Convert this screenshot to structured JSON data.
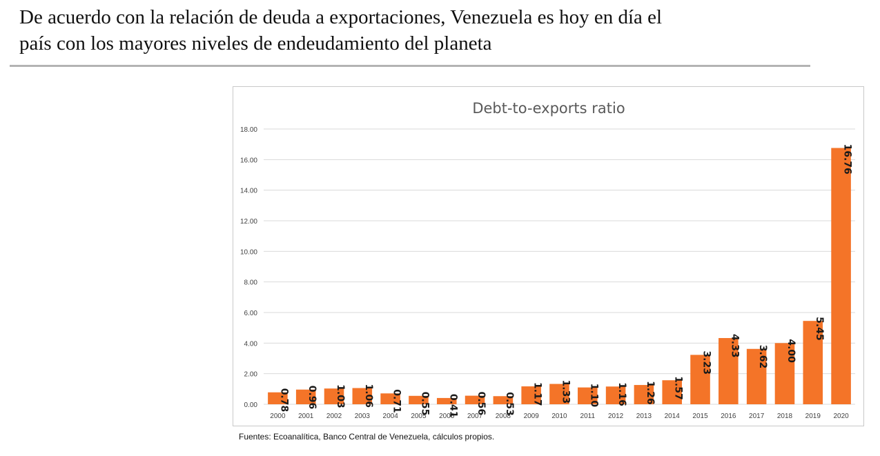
{
  "slide": {
    "title_line1": "De acuerdo con la relación de deuda a exportaciones, Venezuela es hoy en día el",
    "title_line2": "país con los mayores niveles de endeudamiento del planeta",
    "source": "Fuentes: Ecoanalítica, Banco Central de Venezuela, cálculos propios."
  },
  "chart_data": {
    "type": "bar",
    "title": "Debt-to-exports ratio",
    "xlabel": "",
    "ylabel": "",
    "categories": [
      "2000",
      "2001",
      "2002",
      "2003",
      "2004",
      "2005",
      "2006",
      "2007",
      "2008",
      "2009",
      "2010",
      "2011",
      "2012",
      "2013",
      "2014",
      "2015",
      "2016",
      "2017",
      "2018",
      "2019",
      "2020"
    ],
    "values": [
      0.78,
      0.96,
      1.03,
      1.06,
      0.71,
      0.55,
      0.41,
      0.56,
      0.53,
      1.17,
      1.33,
      1.1,
      1.16,
      1.26,
      1.57,
      3.23,
      4.33,
      3.62,
      4.0,
      5.45,
      16.76
    ],
    "value_labels": [
      "0.78",
      "0.96",
      "1.03",
      "1.06",
      "0.71",
      "0.55",
      "0.41",
      "0.56",
      "0.53",
      "1.17",
      "1.33",
      "1.10",
      "1.16",
      "1.26",
      "1.57",
      "3.23",
      "4.33",
      "3.62",
      "4.00",
      "5.45",
      "16.76"
    ],
    "ylim": [
      0,
      18
    ],
    "y_ticks": [
      "0.00",
      "2.00",
      "4.00",
      "6.00",
      "8.00",
      "10.00",
      "12.00",
      "14.00",
      "16.00",
      "18.00"
    ],
    "grid": true,
    "legend": "none",
    "bar_color": "#F47428",
    "grid_color": "#d9d9d9"
  }
}
